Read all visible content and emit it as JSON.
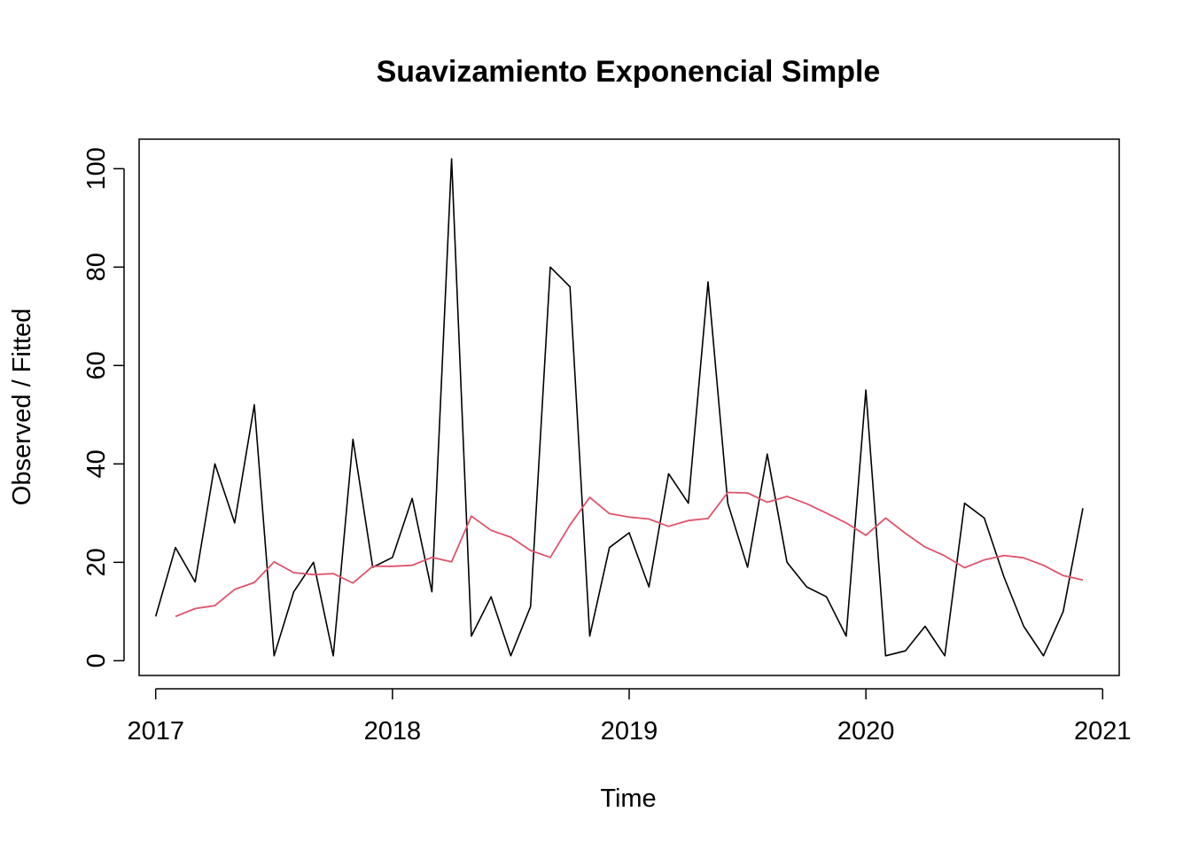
{
  "chart_data": {
    "type": "line",
    "title": "Suavizamiento Exponencial Simple",
    "xlabel": "Time",
    "ylabel": "Observed / Fitted",
    "xlim": [
      2016.93,
      2021.07
    ],
    "ylim": [
      -3,
      106
    ],
    "x_ticks": [
      2017,
      2018,
      2019,
      2020,
      2021
    ],
    "y_ticks": [
      0,
      20,
      40,
      60,
      80,
      100
    ],
    "x_start": 2017,
    "frequency": 12,
    "grid": false,
    "legend": "none",
    "series": [
      {
        "role": "observed",
        "color": "#000000",
        "values": [
          9,
          23,
          16,
          40,
          28,
          52,
          1,
          14,
          20,
          1,
          45,
          19,
          21,
          33,
          14,
          102,
          5,
          13,
          1,
          11,
          80,
          76,
          5,
          23,
          26,
          15,
          38,
          32,
          77,
          32,
          19,
          42,
          20,
          15,
          13,
          5,
          55,
          1,
          2,
          7,
          1,
          32,
          29,
          17,
          7,
          1,
          10,
          31
        ]
      },
      {
        "role": "fitted",
        "color": "#DF536B",
        "values": [
          null,
          9,
          10.6,
          11.2,
          14.5,
          15.9,
          20.1,
          17.9,
          17.5,
          17.7,
          15.8,
          19.2,
          19.2,
          19.4,
          21.0,
          20.1,
          29.4,
          26.5,
          25.1,
          22.4,
          21.0,
          27.6,
          33.2,
          29.9,
          29.2,
          28.8,
          27.3,
          28.5,
          28.9,
          34.2,
          34.1,
          32.2,
          33.4,
          31.9,
          30.0,
          28.0,
          25.5,
          29.0,
          25.9,
          23.1,
          21.3,
          18.9,
          20.5,
          21.4,
          20.9,
          19.4,
          17.3,
          16.4
        ]
      }
    ]
  }
}
